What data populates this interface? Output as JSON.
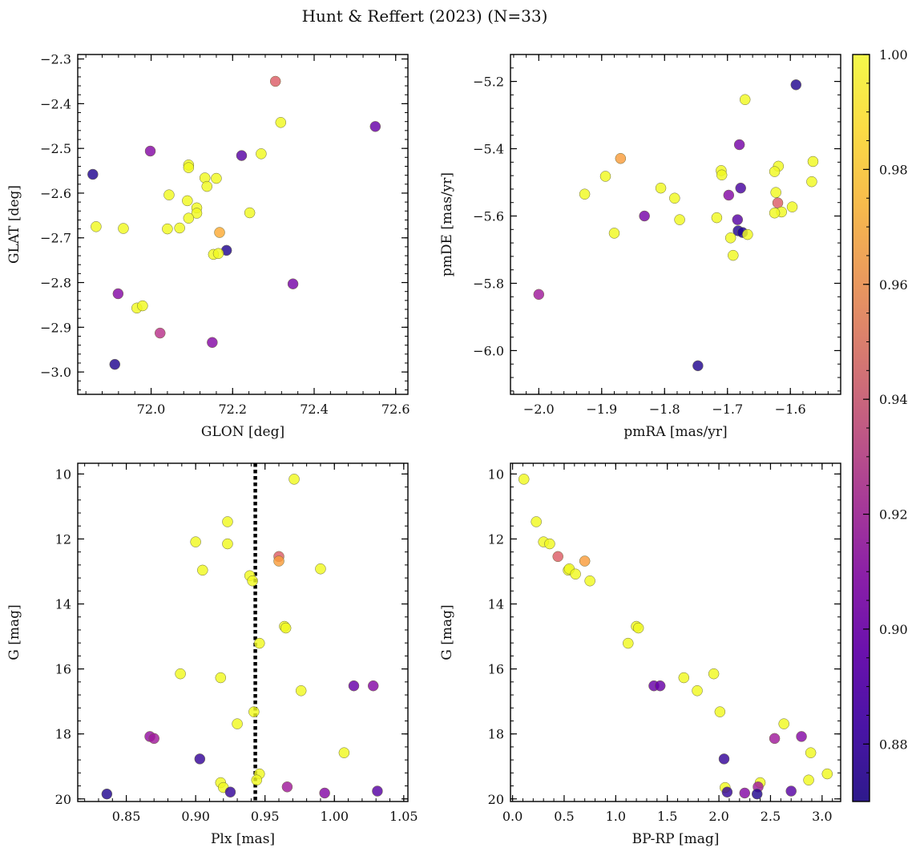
{
  "figure": {
    "title": "Hunt & Reffert (2023) (N=33)",
    "colorbar": {
      "colormap": "plasma",
      "vmin": 0.87,
      "vmax": 1.0,
      "ticks": [
        0.88,
        0.9,
        0.92,
        0.94,
        0.96,
        0.98,
        1.0
      ],
      "tick_labels": [
        "0.88",
        "0.90",
        "0.92",
        "0.94",
        "0.96",
        "0.98",
        "1.00"
      ]
    }
  },
  "chart_data": [
    {
      "type": "scatter",
      "title": "",
      "xlabel": "GLON [deg]",
      "ylabel": "GLAT [deg]",
      "xlim": [
        71.82,
        72.63
      ],
      "ylim": [
        -3.05,
        -2.29
      ],
      "y_inverted": false,
      "xticks": [
        71.8,
        72.0,
        72.2,
        72.4,
        72.6
      ],
      "xtick_labels": [
        "71.8",
        "72.0",
        "72.2",
        "72.4",
        "72.6"
      ],
      "yticks": [
        -3.0,
        -2.9,
        -2.8,
        -2.7,
        -2.6,
        -2.5,
        -2.4,
        -2.3
      ],
      "ytick_labels": [
        "−3.0",
        "−2.9",
        "−2.8",
        "−2.7",
        "−2.6",
        "−2.5",
        "−2.4",
        "−2.3"
      ],
      "points": [
        {
          "x": 72.305,
          "y": -2.35,
          "c": 0.945
        },
        {
          "x": 72.318,
          "y": -2.442,
          "c": 1.0
        },
        {
          "x": 72.55,
          "y": -2.451,
          "c": 0.895
        },
        {
          "x": 71.857,
          "y": -2.558,
          "c": 0.875
        },
        {
          "x": 71.998,
          "y": -2.506,
          "c": 0.905
        },
        {
          "x": 72.222,
          "y": -2.516,
          "c": 0.89
        },
        {
          "x": 72.27,
          "y": -2.512,
          "c": 1.0
        },
        {
          "x": 72.092,
          "y": -2.537,
          "c": 1.0
        },
        {
          "x": 72.092,
          "y": -2.543,
          "c": 1.0
        },
        {
          "x": 72.132,
          "y": -2.566,
          "c": 1.0
        },
        {
          "x": 72.16,
          "y": -2.567,
          "c": 1.0
        },
        {
          "x": 72.137,
          "y": -2.585,
          "c": 1.0
        },
        {
          "x": 72.044,
          "y": -2.604,
          "c": 1.0
        },
        {
          "x": 72.089,
          "y": -2.617,
          "c": 1.0
        },
        {
          "x": 72.112,
          "y": -2.633,
          "c": 1.0
        },
        {
          "x": 72.112,
          "y": -2.645,
          "c": 1.0
        },
        {
          "x": 72.242,
          "y": -2.644,
          "c": 1.0
        },
        {
          "x": 72.092,
          "y": -2.656,
          "c": 1.0
        },
        {
          "x": 71.865,
          "y": -2.675,
          "c": 1.0
        },
        {
          "x": 71.932,
          "y": -2.679,
          "c": 1.0
        },
        {
          "x": 72.04,
          "y": -2.68,
          "c": 1.0
        },
        {
          "x": 72.07,
          "y": -2.678,
          "c": 1.0
        },
        {
          "x": 72.168,
          "y": -2.688,
          "c": 0.975
        },
        {
          "x": 72.185,
          "y": -2.728,
          "c": 0.875
        },
        {
          "x": 72.153,
          "y": -2.737,
          "c": 1.0
        },
        {
          "x": 72.165,
          "y": -2.735,
          "c": 1.0
        },
        {
          "x": 72.348,
          "y": -2.803,
          "c": 0.9
        },
        {
          "x": 71.919,
          "y": -2.825,
          "c": 0.905
        },
        {
          "x": 71.965,
          "y": -2.857,
          "c": 1.0
        },
        {
          "x": 71.979,
          "y": -2.852,
          "c": 1.0
        },
        {
          "x": 72.022,
          "y": -2.913,
          "c": 0.925
        },
        {
          "x": 72.15,
          "y": -2.934,
          "c": 0.905
        },
        {
          "x": 71.911,
          "y": -2.983,
          "c": 0.875
        }
      ]
    },
    {
      "type": "scatter",
      "title": "",
      "xlabel": "pmRA [mas/yr]",
      "ylabel": "pmDE [mas/yr]",
      "xlim": [
        -2.045,
        -1.52
      ],
      "ylim": [
        -6.13,
        -5.12
      ],
      "y_inverted": false,
      "xticks": [
        -2.0,
        -1.9,
        -1.8,
        -1.7,
        -1.6
      ],
      "xtick_labels": [
        "−2.0",
        "−1.9",
        "−1.8",
        "−1.7",
        "−1.6"
      ],
      "yticks": [
        -6.0,
        -5.8,
        -5.6,
        -5.4,
        -5.2
      ],
      "ytick_labels": [
        "−6.0",
        "−5.8",
        "−5.6",
        "−5.4",
        "−5.2"
      ],
      "points": [
        {
          "x": -1.591,
          "y": -5.21,
          "c": 0.875
        },
        {
          "x": -1.672,
          "y": -5.254,
          "c": 1.0
        },
        {
          "x": -1.681,
          "y": -5.388,
          "c": 0.9
        },
        {
          "x": -1.87,
          "y": -5.429,
          "c": 0.97
        },
        {
          "x": -1.564,
          "y": -5.438,
          "c": 1.0
        },
        {
          "x": -1.619,
          "y": -5.452,
          "c": 1.0
        },
        {
          "x": -1.71,
          "y": -5.465,
          "c": 1.0
        },
        {
          "x": -1.625,
          "y": -5.468,
          "c": 1.0
        },
        {
          "x": -1.709,
          "y": -5.478,
          "c": 1.0
        },
        {
          "x": -1.894,
          "y": -5.482,
          "c": 1.0
        },
        {
          "x": -1.566,
          "y": -5.498,
          "c": 1.0
        },
        {
          "x": -1.806,
          "y": -5.517,
          "c": 1.0
        },
        {
          "x": -1.679,
          "y": -5.517,
          "c": 0.885
        },
        {
          "x": -1.623,
          "y": -5.53,
          "c": 1.0
        },
        {
          "x": -1.927,
          "y": -5.535,
          "c": 1.0
        },
        {
          "x": -1.698,
          "y": -5.538,
          "c": 0.905
        },
        {
          "x": -1.784,
          "y": -5.547,
          "c": 1.0
        },
        {
          "x": -1.62,
          "y": -5.561,
          "c": 0.945
        },
        {
          "x": -1.597,
          "y": -5.573,
          "c": 1.0
        },
        {
          "x": -1.614,
          "y": -5.588,
          "c": 1.0
        },
        {
          "x": -1.625,
          "y": -5.591,
          "c": 1.0
        },
        {
          "x": -1.832,
          "y": -5.6,
          "c": 0.9
        },
        {
          "x": -1.717,
          "y": -5.605,
          "c": 1.0
        },
        {
          "x": -1.684,
          "y": -5.611,
          "c": 0.89
        },
        {
          "x": -1.776,
          "y": -5.611,
          "c": 1.0
        },
        {
          "x": -1.683,
          "y": -5.644,
          "c": 0.875
        },
        {
          "x": -1.676,
          "y": -5.649,
          "c": 0.875
        },
        {
          "x": -1.88,
          "y": -5.651,
          "c": 1.0
        },
        {
          "x": -1.668,
          "y": -5.655,
          "c": 1.0
        },
        {
          "x": -1.695,
          "y": -5.665,
          "c": 1.0
        },
        {
          "x": -1.691,
          "y": -5.717,
          "c": 1.0
        },
        {
          "x": -2.0,
          "y": -5.833,
          "c": 0.915
        },
        {
          "x": -1.747,
          "y": -6.045,
          "c": 0.875
        }
      ]
    },
    {
      "type": "scatter",
      "title": "",
      "xlabel": "Plx [mas]",
      "ylabel": "G [mag]",
      "xlim": [
        0.815,
        1.053
      ],
      "ylim": [
        20.08,
        9.67
      ],
      "y_inverted": true,
      "vline": {
        "x": 0.943,
        "style": "dotted",
        "color": "#000000"
      },
      "xticks": [
        0.85,
        0.9,
        0.95,
        1.0,
        1.05
      ],
      "xtick_labels": [
        "0.85",
        "0.90",
        "0.95",
        "1.00",
        "1.05"
      ],
      "yticks": [
        10,
        12,
        14,
        16,
        18,
        20
      ],
      "ytick_labels": [
        "10",
        "12",
        "14",
        "16",
        "18",
        "20"
      ],
      "points": [
        {
          "x": 0.971,
          "y": 10.16,
          "c": 1.0
        },
        {
          "x": 0.923,
          "y": 11.47,
          "c": 1.0
        },
        {
          "x": 0.9,
          "y": 12.09,
          "c": 1.0
        },
        {
          "x": 0.923,
          "y": 12.15,
          "c": 1.0
        },
        {
          "x": 0.96,
          "y": 12.54,
          "c": 0.945
        },
        {
          "x": 0.96,
          "y": 12.68,
          "c": 0.97
        },
        {
          "x": 0.905,
          "y": 12.96,
          "c": 1.0
        },
        {
          "x": 0.99,
          "y": 12.92,
          "c": 1.0
        },
        {
          "x": 0.939,
          "y": 13.13,
          "c": 1.0
        },
        {
          "x": 0.941,
          "y": 13.29,
          "c": 1.0
        },
        {
          "x": 0.964,
          "y": 14.69,
          "c": 1.0
        },
        {
          "x": 0.965,
          "y": 14.74,
          "c": 1.0
        },
        {
          "x": 0.946,
          "y": 15.21,
          "c": 1.0
        },
        {
          "x": 0.889,
          "y": 16.15,
          "c": 1.0
        },
        {
          "x": 0.918,
          "y": 16.27,
          "c": 1.0
        },
        {
          "x": 1.014,
          "y": 16.52,
          "c": 0.895
        },
        {
          "x": 1.028,
          "y": 16.52,
          "c": 0.905
        },
        {
          "x": 0.976,
          "y": 16.67,
          "c": 1.0
        },
        {
          "x": 0.942,
          "y": 17.32,
          "c": 1.0
        },
        {
          "x": 0.93,
          "y": 17.69,
          "c": 1.0
        },
        {
          "x": 0.867,
          "y": 18.08,
          "c": 0.91
        },
        {
          "x": 0.87,
          "y": 18.14,
          "c": 0.915
        },
        {
          "x": 1.007,
          "y": 18.58,
          "c": 1.0
        },
        {
          "x": 0.903,
          "y": 18.77,
          "c": 0.88
        },
        {
          "x": 0.946,
          "y": 19.23,
          "c": 1.0
        },
        {
          "x": 0.944,
          "y": 19.42,
          "c": 1.0
        },
        {
          "x": 0.918,
          "y": 19.5,
          "c": 1.0
        },
        {
          "x": 0.92,
          "y": 19.65,
          "c": 1.0
        },
        {
          "x": 0.966,
          "y": 19.63,
          "c": 0.915
        },
        {
          "x": 1.031,
          "y": 19.76,
          "c": 0.89
        },
        {
          "x": 0.925,
          "y": 19.79,
          "c": 0.88
        },
        {
          "x": 0.993,
          "y": 19.82,
          "c": 0.905
        },
        {
          "x": 0.836,
          "y": 19.85,
          "c": 0.875
        }
      ]
    },
    {
      "type": "scatter",
      "title": "",
      "xlabel": "BP-RP [mag]",
      "ylabel": "G [mag]",
      "xlim": [
        -0.02,
        3.18
      ],
      "ylim": [
        20.08,
        9.67
      ],
      "y_inverted": true,
      "xticks": [
        0.0,
        0.5,
        1.0,
        1.5,
        2.0,
        2.5,
        3.0
      ],
      "xtick_labels": [
        "0.0",
        "0.5",
        "1.0",
        "1.5",
        "2.0",
        "2.5",
        "3.0"
      ],
      "yticks": [
        10,
        12,
        14,
        16,
        18,
        20
      ],
      "ytick_labels": [
        "10",
        "12",
        "14",
        "16",
        "18",
        "20"
      ],
      "points": [
        {
          "x": 0.11,
          "y": 10.16,
          "c": 1.0
        },
        {
          "x": 0.23,
          "y": 11.47,
          "c": 1.0
        },
        {
          "x": 0.3,
          "y": 12.09,
          "c": 1.0
        },
        {
          "x": 0.36,
          "y": 12.15,
          "c": 1.0
        },
        {
          "x": 0.44,
          "y": 12.54,
          "c": 0.945
        },
        {
          "x": 0.7,
          "y": 12.68,
          "c": 0.97
        },
        {
          "x": 0.54,
          "y": 12.96,
          "c": 1.0
        },
        {
          "x": 0.55,
          "y": 12.92,
          "c": 1.0
        },
        {
          "x": 0.61,
          "y": 13.08,
          "c": 1.0
        },
        {
          "x": 0.75,
          "y": 13.29,
          "c": 1.0
        },
        {
          "x": 1.2,
          "y": 14.69,
          "c": 1.0
        },
        {
          "x": 1.22,
          "y": 14.74,
          "c": 1.0
        },
        {
          "x": 1.12,
          "y": 15.21,
          "c": 1.0
        },
        {
          "x": 1.95,
          "y": 16.15,
          "c": 1.0
        },
        {
          "x": 1.66,
          "y": 16.27,
          "c": 1.0
        },
        {
          "x": 1.37,
          "y": 16.52,
          "c": 0.895
        },
        {
          "x": 1.43,
          "y": 16.52,
          "c": 0.895
        },
        {
          "x": 1.79,
          "y": 16.67,
          "c": 1.0
        },
        {
          "x": 2.01,
          "y": 17.32,
          "c": 1.0
        },
        {
          "x": 2.63,
          "y": 17.69,
          "c": 1.0
        },
        {
          "x": 2.54,
          "y": 18.14,
          "c": 0.915
        },
        {
          "x": 2.8,
          "y": 18.08,
          "c": 0.905
        },
        {
          "x": 2.89,
          "y": 18.58,
          "c": 1.0
        },
        {
          "x": 2.05,
          "y": 18.77,
          "c": 0.88
        },
        {
          "x": 3.05,
          "y": 19.23,
          "c": 1.0
        },
        {
          "x": 2.87,
          "y": 19.42,
          "c": 1.0
        },
        {
          "x": 2.4,
          "y": 19.5,
          "c": 1.0
        },
        {
          "x": 2.06,
          "y": 19.65,
          "c": 1.0
        },
        {
          "x": 2.38,
          "y": 19.63,
          "c": 0.915
        },
        {
          "x": 2.7,
          "y": 19.76,
          "c": 0.89
        },
        {
          "x": 2.08,
          "y": 19.79,
          "c": 0.88
        },
        {
          "x": 2.25,
          "y": 19.82,
          "c": 0.905
        },
        {
          "x": 2.37,
          "y": 19.85,
          "c": 0.875
        }
      ]
    }
  ]
}
